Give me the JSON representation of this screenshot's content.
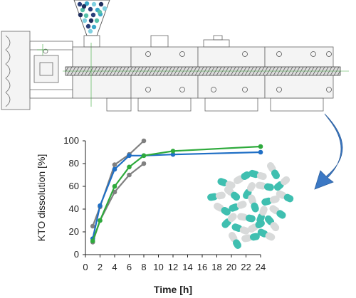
{
  "chart_data": {
    "type": "line",
    "xlabel": "Time [h]",
    "ylabel": "KTO dissolution [%]",
    "xlim": [
      0,
      24
    ],
    "ylim": [
      0,
      100
    ],
    "x_ticks": [
      0,
      2,
      4,
      6,
      8,
      10,
      12,
      14,
      16,
      18,
      20,
      22,
      24
    ],
    "y_ticks": [
      0,
      20,
      40,
      60,
      80,
      100
    ],
    "grid": false,
    "series": [
      {
        "color": "#808080",
        "x": [
          1,
          2,
          4,
          6,
          8
        ],
        "y": [
          25,
          42,
          79,
          88,
          100
        ]
      },
      {
        "color": "#808080",
        "x": [
          1,
          2,
          4,
          6,
          8
        ],
        "y": [
          11,
          30,
          55,
          70,
          80
        ]
      },
      {
        "color": "#1f6fc5",
        "x": [
          1,
          2,
          4,
          6,
          8,
          12,
          24
        ],
        "y": [
          14,
          43,
          75,
          87,
          87,
          88,
          90
        ]
      },
      {
        "color": "#2eaa3c",
        "x": [
          1,
          2,
          4,
          6,
          8,
          12,
          24
        ],
        "y": [
          12,
          30,
          60,
          77,
          87,
          91,
          95
        ]
      }
    ]
  },
  "colors": {
    "arrow": "#3b78c4",
    "capsule_teal": "#3fbfb0",
    "capsule_grey": "#d8dada",
    "bead_colors": [
      "#2a3f7a",
      "#3aa8c8",
      "#7fd0e0",
      "#1e2e5e",
      "#55c0a8"
    ]
  }
}
